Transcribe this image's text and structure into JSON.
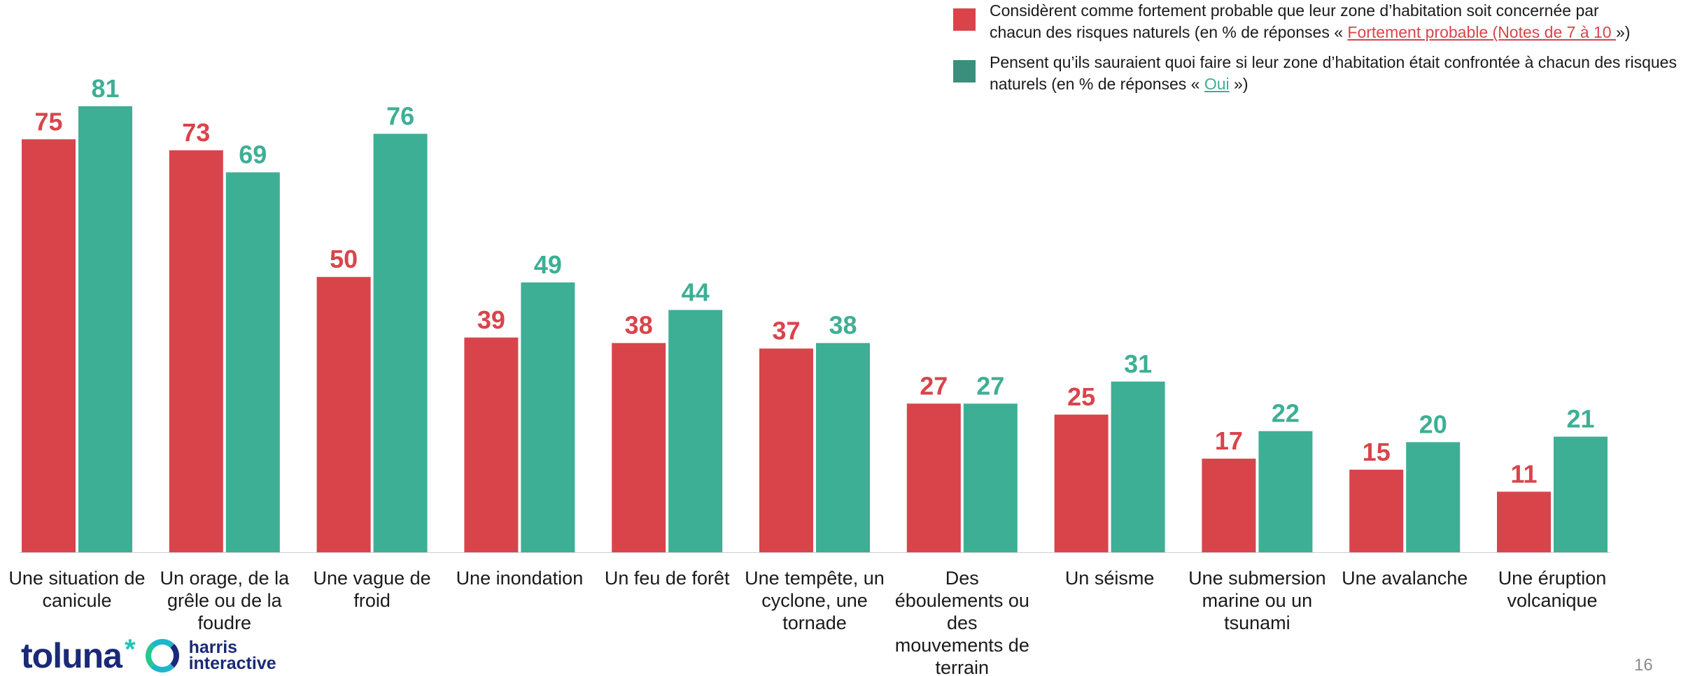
{
  "chart_data": {
    "type": "bar",
    "categories": [
      [
        "Une situation de",
        "canicule"
      ],
      [
        "Un orage, de la",
        "grêle ou de la",
        "foudre"
      ],
      [
        "Une vague de",
        "froid"
      ],
      [
        "Une inondation"
      ],
      [
        "Un feu de forêt"
      ],
      [
        "Une tempête, un",
        "cyclone, une",
        "tornade"
      ],
      [
        "Des",
        "éboulements ou",
        "des",
        "mouvements de",
        "terrain"
      ],
      [
        "Un séisme"
      ],
      [
        "Une submersion",
        "marine ou un",
        "tsunami"
      ],
      [
        "Une avalanche"
      ],
      [
        "Une éruption",
        "volcanique"
      ]
    ],
    "series": [
      {
        "name": "Considèrent comme fortement probable que leur zone d’habitation soit concernée par chacun des risques naturels",
        "color": "#d9444b",
        "values": [
          75,
          73,
          50,
          39,
          38,
          37,
          27,
          25,
          17,
          15,
          11
        ]
      },
      {
        "name": "Pensent qu’ils sauraient quoi faire si leur zone d’habitation était confrontée à chacun des risques naturels",
        "color": "#3daf95",
        "values": [
          81,
          69,
          76,
          49,
          44,
          38,
          27,
          31,
          22,
          20,
          21
        ]
      }
    ],
    "ylim": [
      0,
      81
    ],
    "grid": false,
    "legend": "top-right"
  },
  "legend": {
    "item1_line1": "Considèrent comme fortement probable que leur zone d’habitation soit concernée par",
    "item1_line2_pre": "chacun des risques naturels (en % de réponses « ",
    "item1_link": "Fortement probable (Notes de 7 à 10 ",
    "item1_line2_post": "»)",
    "item2_line1": "Pensent qu’ils sauraient quoi faire si leur zone d’habitation était confrontée à chacun des risques",
    "item2_line2_pre": "naturels (en % de réponses « ",
    "item2_link": "Oui",
    "item2_line2_post": " »)"
  },
  "branding": {
    "toluna": "toluna",
    "toluna_star": "*",
    "harris_line1": "harris",
    "harris_line2": "interactive"
  },
  "page_number": "16"
}
